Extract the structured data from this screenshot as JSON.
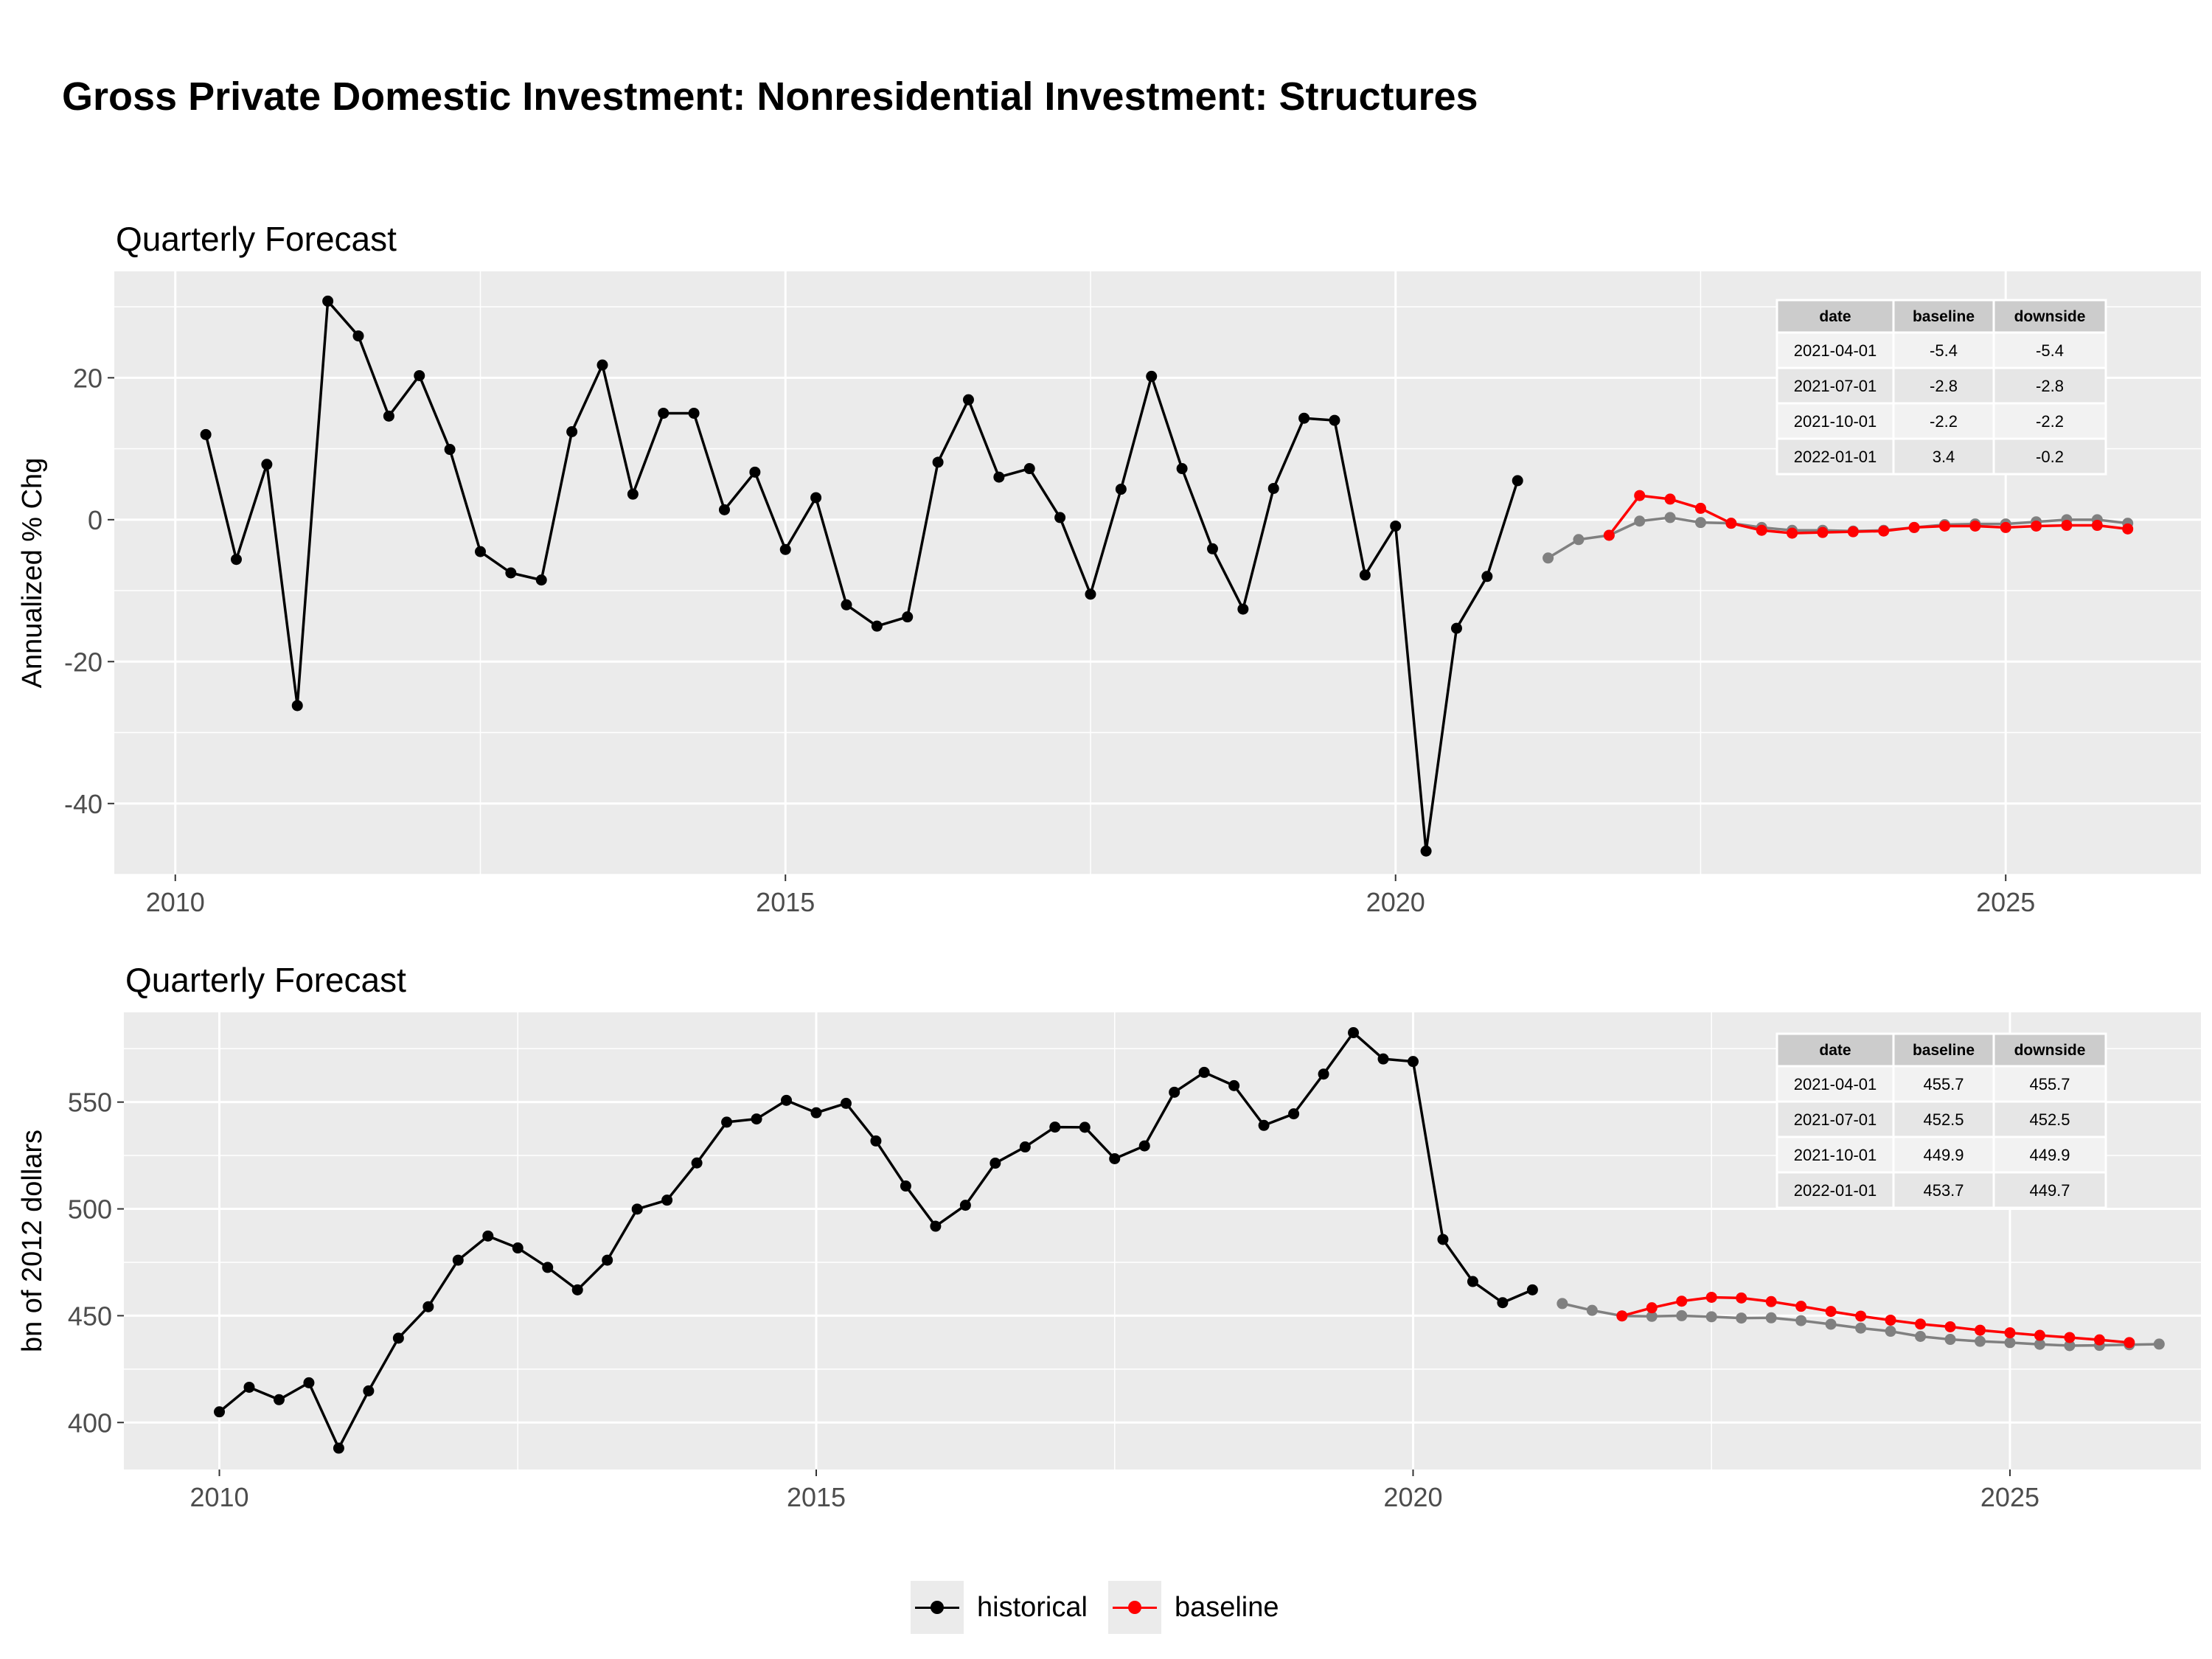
{
  "title": "Gross Private Domestic Investment: Nonresidential Investment: Structures",
  "colors": {
    "historical": "#000000",
    "baseline": "#ff0000",
    "downside": "#808080",
    "panel": "#ebebeb",
    "grid": "#ffffff"
  },
  "legend": {
    "items": [
      {
        "label": "historical",
        "color": "#000000"
      },
      {
        "label": "baseline",
        "color": "#ff0000"
      }
    ]
  },
  "chart_data": [
    {
      "type": "line",
      "title": "Quarterly Forecast",
      "ylabel": "Annualized % Chg",
      "xlabel": "",
      "xlim": [
        2009.5,
        2026.6
      ],
      "ylim": [
        -50,
        35
      ],
      "x_ticks": [
        2010,
        2015,
        2020,
        2025
      ],
      "x_tick_labels": [
        "2010",
        "2015",
        "2020",
        "2025"
      ],
      "y_ticks": [
        -40,
        -20,
        0,
        20
      ],
      "y_tick_labels": [
        "-40",
        "-20",
        "0",
        "20"
      ],
      "grid": true,
      "series": [
        {
          "name": "historical",
          "color": "#000000",
          "start": "2010-04-01",
          "values": [
            12.0,
            -5.6,
            7.8,
            -26.2,
            30.8,
            25.9,
            14.6,
            20.3,
            9.9,
            -4.5,
            -7.5,
            -8.5,
            12.4,
            21.8,
            3.6,
            15.0,
            15.0,
            1.4,
            6.7,
            -4.2,
            3.1,
            -12.0,
            -15.0,
            -13.7,
            8.1,
            16.9,
            6.0,
            7.2,
            0.3,
            -10.5,
            4.3,
            20.2,
            7.2,
            -4.1,
            -12.6,
            4.4,
            14.3,
            14.0,
            -7.8,
            -0.9,
            -46.7,
            -15.3,
            -8.0,
            5.5
          ]
        },
        {
          "name": "downside",
          "color": "#808080",
          "start": "2021-04-01",
          "values": [
            -5.4,
            -2.8,
            -2.2,
            -0.2,
            0.3,
            -0.4,
            -0.5,
            -1.1,
            -1.5,
            -1.5,
            -1.6,
            -1.5,
            -1.1,
            -0.7,
            -0.6,
            -0.6,
            -0.3,
            0.0,
            0.0,
            -0.5
          ]
        },
        {
          "name": "baseline",
          "color": "#ff0000",
          "start": "2021-10-01",
          "values": [
            -2.2,
            3.4,
            2.9,
            1.6,
            -0.5,
            -1.5,
            -1.9,
            -1.8,
            -1.7,
            -1.6,
            -1.1,
            -0.9,
            -0.9,
            -1.1,
            -0.9,
            -0.8,
            -0.8,
            -1.3
          ]
        }
      ],
      "table": {
        "columns": [
          "date",
          "baseline",
          "downside"
        ],
        "rows": [
          [
            "2021-04-01",
            "-5.4",
            "-5.4"
          ],
          [
            "2021-07-01",
            "-2.8",
            "-2.8"
          ],
          [
            "2021-10-01",
            "-2.2",
            "-2.2"
          ],
          [
            "2022-01-01",
            "3.4",
            "-0.2"
          ]
        ]
      }
    },
    {
      "type": "line",
      "title": "Quarterly Forecast",
      "ylabel": "bn of 2012 dollars",
      "xlabel": "",
      "xlim": [
        2009.2,
        2026.6
      ],
      "ylim": [
        378,
        592
      ],
      "x_ticks": [
        2010,
        2015,
        2020,
        2025
      ],
      "x_tick_labels": [
        "2010",
        "2015",
        "2020",
        "2025"
      ],
      "y_ticks": [
        400,
        450,
        500,
        550
      ],
      "y_tick_labels": [
        "400",
        "450",
        "500",
        "550"
      ],
      "grid": true,
      "series": [
        {
          "name": "historical",
          "color": "#000000",
          "start": "2010-01-01",
          "values": [
            405.0,
            416.5,
            410.7,
            418.6,
            388.0,
            414.8,
            439.5,
            454.2,
            476.0,
            487.3,
            481.7,
            472.6,
            462.1,
            476.0,
            499.9,
            504.1,
            521.5,
            540.6,
            542.1,
            550.8,
            545.0,
            549.4,
            531.8,
            510.7,
            491.9,
            501.7,
            521.4,
            529.0,
            538.3,
            538.2,
            523.5,
            529.5,
            554.6,
            563.9,
            557.7,
            539.1,
            544.5,
            563.1,
            582.5,
            570.2,
            569.0,
            485.7,
            466.0,
            456.1,
            462.1
          ]
        },
        {
          "name": "downside",
          "color": "#808080",
          "start": "2021-04-01",
          "values": [
            455.7,
            452.5,
            449.9,
            449.7,
            450.0,
            449.5,
            448.9,
            449.0,
            447.7,
            446.0,
            444.2,
            442.7,
            440.3,
            438.9,
            438.0,
            437.4,
            436.6,
            436.0,
            436.1,
            436.4,
            436.7
          ]
        },
        {
          "name": "baseline",
          "color": "#ff0000",
          "start": "2021-10-01",
          "values": [
            449.9,
            453.7,
            456.8,
            458.6,
            458.3,
            456.6,
            454.4,
            452.0,
            449.8,
            447.9,
            446.1,
            444.8,
            443.2,
            442.0,
            440.8,
            439.8,
            438.7,
            437.4
          ]
        }
      ],
      "table": {
        "columns": [
          "date",
          "baseline",
          "downside"
        ],
        "rows": [
          [
            "2021-04-01",
            "455.7",
            "455.7"
          ],
          [
            "2021-07-01",
            "452.5",
            "452.5"
          ],
          [
            "2021-10-01",
            "449.9",
            "449.9"
          ],
          [
            "2022-01-01",
            "453.7",
            "449.7"
          ]
        ]
      }
    }
  ]
}
